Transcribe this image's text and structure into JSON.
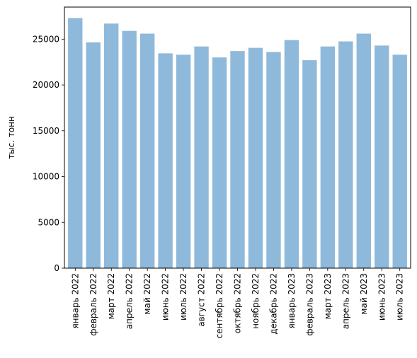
{
  "chart_data": {
    "type": "bar",
    "title": "",
    "xlabel": "",
    "ylabel": "тыс. тонн",
    "ylim": [
      0,
      28500
    ],
    "yticks": [
      0,
      5000,
      10000,
      15000,
      20000,
      25000
    ],
    "ytick_labels": [
      "0",
      "5000",
      "10000",
      "15000",
      "20000",
      "25000"
    ],
    "grid": false,
    "bar_color": "#8fb9da",
    "categories": [
      "январь 2022",
      "февраль 2022",
      "март 2022",
      "апрель 2022",
      "май 2022",
      "июнь 2022",
      "июль 2022",
      "август 2022",
      "сентябрь 2022",
      "октябрь 2022",
      "ноябрь 2022",
      "декабрь 2022",
      "январь 2023",
      "февраль 2023",
      "март 2023",
      "апрель 2023",
      "май 2023",
      "июнь 2023",
      "июль 2023"
    ],
    "values": [
      27300,
      24650,
      26700,
      25900,
      25600,
      23450,
      23300,
      24200,
      23000,
      23700,
      24050,
      23600,
      24900,
      22700,
      24200,
      24750,
      25600,
      24300,
      23300
    ]
  }
}
